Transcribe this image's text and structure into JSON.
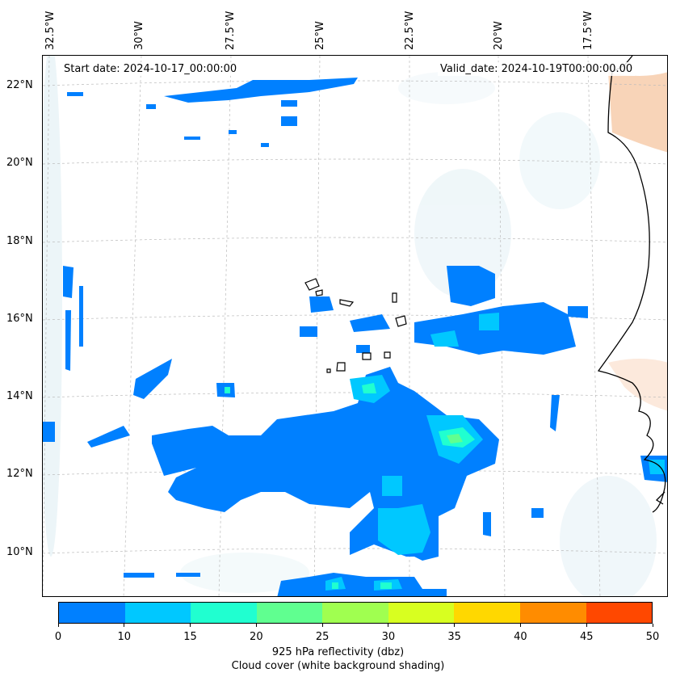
{
  "map": {
    "lon_labels": [
      "32.5°W",
      "30°W",
      "27.5°W",
      "25°W",
      "22.5°W",
      "20°W",
      "17.5°W"
    ],
    "lat_labels": [
      "22°N",
      "20°N",
      "18°N",
      "16°N",
      "14°N",
      "12°N",
      "10°N"
    ],
    "start_date": "Start date: 2024-10-17_00:00:00",
    "valid_date": "Valid_date: 2024-10-19T00:00:00.00"
  },
  "colorbar": {
    "ticks": [
      "0",
      "10",
      "15",
      "20",
      "25",
      "30",
      "35",
      "40",
      "45",
      "50"
    ],
    "colors": [
      "#0080ff",
      "#00c8ff",
      "#20ffd0",
      "#60ff90",
      "#a0ff50",
      "#d8ff20",
      "#ffd800",
      "#ff8c00",
      "#ff4800"
    ],
    "label": "925 hPa reflectivity (dbz)",
    "sublabel": "Cloud cover (white background shading)"
  }
}
